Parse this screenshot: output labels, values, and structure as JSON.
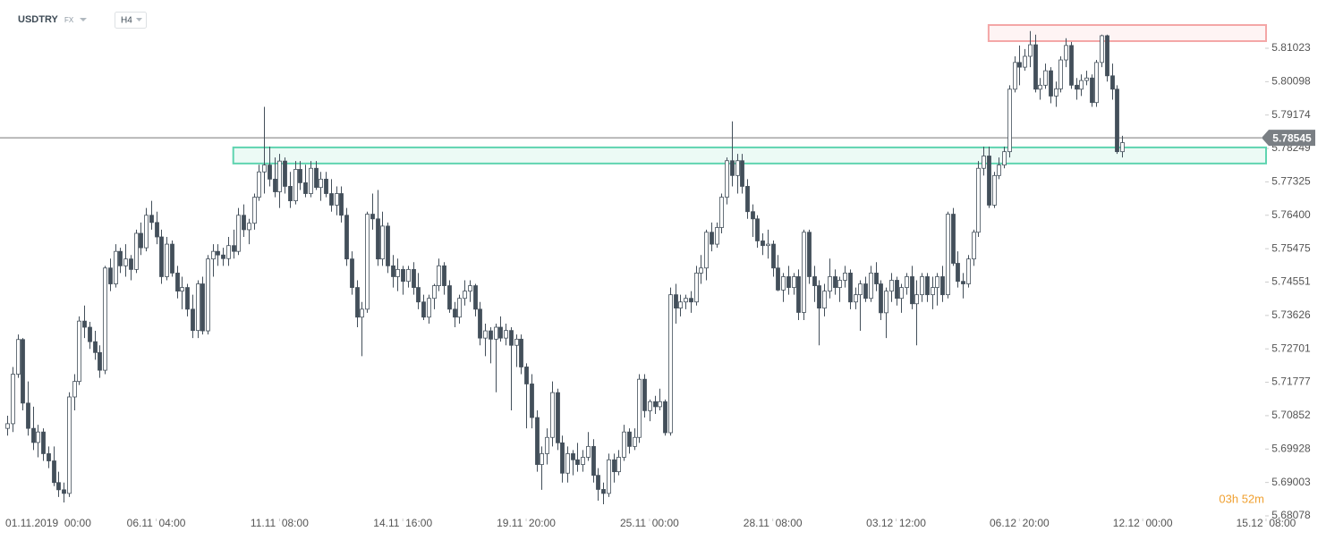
{
  "header": {
    "symbol": "USDTRY",
    "market": "FX",
    "interval": "H4"
  },
  "chart_data": {
    "type": "candlestick",
    "up_color": "#ffffff",
    "down_color": "#434f5a",
    "edge_color": "#434f5a",
    "ylim": [
      5.68004,
      5.82359
    ],
    "yticks": [
      5.68078,
      5.69003,
      5.69928,
      5.70852,
      5.71777,
      5.72701,
      5.73626,
      5.74551,
      5.75475,
      {
        "value": 5.764,
        "label": "5.76400"
      },
      5.77325,
      5.78249,
      5.79174,
      5.80098,
      5.81023
    ],
    "xlim": [
      -1.4,
      245
    ],
    "xticks": [
      {
        "value": 8,
        "label": "01.11.2019  00:00"
      },
      {
        "value": 29,
        "label": "06.11  04:00"
      },
      {
        "value": 53,
        "label": "11.11  08:00"
      },
      {
        "value": 77,
        "label": "14.11  16:00"
      },
      {
        "value": 101,
        "label": "19.11  20:00"
      },
      {
        "value": 125,
        "label": "25.11  00:00"
      },
      {
        "value": 149,
        "label": "28.11  08:00"
      },
      {
        "value": 173,
        "label": "03.12  12:00"
      },
      {
        "value": 197,
        "label": "06.12  20:00"
      },
      {
        "value": 221,
        "label": "12.12  00:00"
      },
      {
        "value": 245,
        "label": "15.12  08:00"
      }
    ],
    "last_price": 5.78545,
    "zones": [
      {
        "start": 44,
        "low": 5.77833,
        "high": 5.78278,
        "color": "#5fd4b0"
      },
      {
        "start": 191,
        "low": 5.81221,
        "high": 5.81666,
        "color": "#f4a6a6"
      }
    ],
    "timer": "03h 52m",
    "ohlc": [
      [
        5.705,
        5.7085,
        5.703,
        5.7063
      ],
      [
        5.7063,
        5.722,
        5.704,
        5.72
      ],
      [
        5.72,
        5.731,
        5.719,
        5.7296
      ],
      [
        5.7296,
        5.73,
        5.71,
        5.712
      ],
      [
        5.712,
        5.718,
        5.703,
        5.705
      ],
      [
        5.705,
        5.711,
        5.699,
        5.7011
      ],
      [
        5.7011,
        5.706,
        5.697,
        5.704
      ],
      [
        5.704,
        5.705,
        5.696,
        5.698
      ],
      [
        5.698,
        5.7,
        5.694,
        5.696
      ],
      [
        5.696,
        5.7,
        5.689,
        5.69
      ],
      [
        5.69,
        5.693,
        5.686,
        5.688
      ],
      [
        5.688,
        5.69,
        5.6845,
        5.687
      ],
      [
        5.687,
        5.715,
        5.686,
        5.7137
      ],
      [
        5.7137,
        5.72,
        5.71,
        5.718
      ],
      [
        5.718,
        5.736,
        5.717,
        5.7347
      ],
      [
        5.7347,
        5.739,
        5.73,
        5.733
      ],
      [
        5.733,
        5.7345,
        5.727,
        5.729
      ],
      [
        5.729,
        5.732,
        5.724,
        5.726
      ],
      [
        5.726,
        5.728,
        5.719,
        5.7211
      ],
      [
        5.7211,
        5.75,
        5.72,
        5.7494
      ],
      [
        5.7494,
        5.752,
        5.743,
        5.745
      ],
      [
        5.745,
        5.756,
        5.744,
        5.754
      ],
      [
        5.754,
        5.755,
        5.748,
        5.75
      ],
      [
        5.75,
        5.756,
        5.747,
        5.7519
      ],
      [
        5.7519,
        5.753,
        5.746,
        5.749
      ],
      [
        5.749,
        5.76,
        5.748,
        5.759
      ],
      [
        5.759,
        5.762,
        5.753,
        5.755
      ],
      [
        5.755,
        5.766,
        5.754,
        5.764
      ],
      [
        5.764,
        5.768,
        5.76,
        5.762
      ],
      [
        5.762,
        5.765,
        5.756,
        5.758
      ],
      [
        5.758,
        5.76,
        5.745,
        5.747
      ],
      [
        5.747,
        5.758,
        5.746,
        5.756
      ],
      [
        5.756,
        5.757,
        5.747,
        5.748
      ],
      [
        5.748,
        5.75,
        5.741,
        5.743
      ],
      [
        5.743,
        5.747,
        5.738,
        5.744
      ],
      [
        5.744,
        5.745,
        5.736,
        5.738
      ],
      [
        5.738,
        5.742,
        5.73,
        5.7321
      ],
      [
        5.7321,
        5.746,
        5.73,
        5.745
      ],
      [
        5.745,
        5.747,
        5.731,
        5.732
      ],
      [
        5.732,
        5.753,
        5.731,
        5.7519
      ],
      [
        5.7519,
        5.756,
        5.747,
        5.754
      ],
      [
        5.754,
        5.756,
        5.75,
        5.753
      ],
      [
        5.753,
        5.755,
        5.75,
        5.752
      ],
      [
        5.752,
        5.758,
        5.75,
        5.7556
      ],
      [
        5.7556,
        5.76,
        5.752,
        5.754
      ],
      [
        5.754,
        5.766,
        5.753,
        5.764
      ],
      [
        5.764,
        5.767,
        5.758,
        5.76
      ],
      [
        5.76,
        5.763,
        5.756,
        5.7618
      ],
      [
        5.7618,
        5.77,
        5.76,
        5.769
      ],
      [
        5.769,
        5.778,
        5.768,
        5.776
      ],
      [
        5.776,
        5.794,
        5.77,
        5.7779
      ],
      [
        5.7779,
        5.783,
        5.772,
        5.774
      ],
      [
        5.774,
        5.78,
        5.769,
        5.7705
      ],
      [
        5.7705,
        5.781,
        5.766,
        5.779
      ],
      [
        5.779,
        5.78,
        5.77,
        5.772
      ],
      [
        5.772,
        5.776,
        5.766,
        5.768
      ],
      [
        5.768,
        5.779,
        5.767,
        5.7767
      ],
      [
        5.7767,
        5.779,
        5.771,
        5.773
      ],
      [
        5.773,
        5.778,
        5.769,
        5.77
      ],
      [
        5.77,
        5.779,
        5.769,
        5.777
      ],
      [
        5.777,
        5.779,
        5.771,
        5.7717
      ],
      [
        5.7717,
        5.776,
        5.768,
        5.774
      ],
      [
        5.774,
        5.776,
        5.769,
        5.77
      ],
      [
        5.77,
        5.774,
        5.765,
        5.7668
      ],
      [
        5.7668,
        5.772,
        5.764,
        5.77
      ],
      [
        5.77,
        5.772,
        5.762,
        5.764
      ],
      [
        5.764,
        5.766,
        5.75,
        5.7519
      ],
      [
        5.7519,
        5.754,
        5.742,
        5.744
      ],
      [
        5.744,
        5.746,
        5.733,
        5.7358
      ],
      [
        5.7358,
        5.74,
        5.725,
        5.738
      ],
      [
        5.738,
        5.765,
        5.737,
        5.7643
      ],
      [
        5.7643,
        5.77,
        5.76,
        5.763
      ],
      [
        5.763,
        5.771,
        5.75,
        5.7519
      ],
      [
        5.7519,
        5.765,
        5.75,
        5.761
      ],
      [
        5.761,
        5.762,
        5.748,
        5.75
      ],
      [
        5.75,
        5.753,
        5.744,
        5.747
      ],
      [
        5.747,
        5.752,
        5.743,
        5.749
      ],
      [
        5.749,
        5.75,
        5.742,
        5.7457
      ],
      [
        5.7457,
        5.75,
        5.744,
        5.749
      ],
      [
        5.749,
        5.751,
        5.742,
        5.744
      ],
      [
        5.744,
        5.748,
        5.738,
        5.74
      ],
      [
        5.74,
        5.742,
        5.735,
        5.7358
      ],
      [
        5.7358,
        5.742,
        5.734,
        5.741
      ],
      [
        5.741,
        5.745,
        5.738,
        5.7445
      ],
      [
        5.7445,
        5.752,
        5.743,
        5.75
      ],
      [
        5.75,
        5.751,
        5.742,
        5.7445
      ],
      [
        5.7445,
        5.746,
        5.737,
        5.738
      ],
      [
        5.738,
        5.74,
        5.733,
        5.7358
      ],
      [
        5.7358,
        5.742,
        5.734,
        5.741
      ],
      [
        5.741,
        5.746,
        5.739,
        5.743
      ],
      [
        5.743,
        5.746,
        5.74,
        5.7445
      ],
      [
        5.7445,
        5.745,
        5.736,
        5.738
      ],
      [
        5.738,
        5.74,
        5.728,
        5.73
      ],
      [
        5.73,
        5.734,
        5.725,
        5.732
      ],
      [
        5.732,
        5.733,
        5.723,
        5.7297
      ],
      [
        5.7297,
        5.734,
        5.715,
        5.733
      ],
      [
        5.733,
        5.736,
        5.729,
        5.73
      ],
      [
        5.73,
        5.734,
        5.728,
        5.7321
      ],
      [
        5.7321,
        5.733,
        5.71,
        5.728
      ],
      [
        5.728,
        5.731,
        5.722,
        5.7297
      ],
      [
        5.7297,
        5.731,
        5.72,
        5.722
      ],
      [
        5.722,
        5.723,
        5.705,
        5.7173
      ],
      [
        5.7173,
        5.72,
        5.705,
        5.708
      ],
      [
        5.708,
        5.71,
        5.693,
        5.695
      ],
      [
        5.695,
        5.7,
        5.688,
        5.698
      ],
      [
        5.698,
        5.705,
        5.695,
        5.7025
      ],
      [
        5.7025,
        5.718,
        5.7,
        5.7149
      ],
      [
        5.7149,
        5.716,
        5.699,
        5.701
      ],
      [
        5.701,
        5.703,
        5.69,
        5.6926
      ],
      [
        5.6926,
        5.7,
        5.69,
        5.698
      ],
      [
        5.698,
        5.699,
        5.692,
        5.6963
      ],
      [
        5.6963,
        5.701,
        5.693,
        5.695
      ],
      [
        5.695,
        5.699,
        5.693,
        5.697
      ],
      [
        5.697,
        5.704,
        5.696,
        5.7
      ],
      [
        5.7,
        5.702,
        5.69,
        5.692
      ],
      [
        5.692,
        5.694,
        5.685,
        5.6881
      ],
      [
        5.6881,
        5.69,
        5.684,
        5.687
      ],
      [
        5.687,
        5.698,
        5.686,
        5.6963
      ],
      [
        5.6963,
        5.698,
        5.69,
        5.693
      ],
      [
        5.693,
        5.699,
        5.692,
        5.697
      ],
      [
        5.697,
        5.706,
        5.696,
        5.704
      ],
      [
        5.704,
        5.705,
        5.698,
        5.7
      ],
      [
        5.7,
        5.705,
        5.699,
        5.7025
      ],
      [
        5.7025,
        5.72,
        5.701,
        5.7186
      ],
      [
        5.7186,
        5.72,
        5.708,
        5.7099
      ],
      [
        5.7099,
        5.713,
        5.707,
        5.7124
      ],
      [
        5.7124,
        5.714,
        5.709,
        5.711
      ],
      [
        5.711,
        5.716,
        5.71,
        5.7124
      ],
      [
        5.7124,
        5.713,
        5.703,
        5.7038
      ],
      [
        5.7038,
        5.744,
        5.703,
        5.742
      ],
      [
        5.742,
        5.745,
        5.734,
        5.7383
      ],
      [
        5.7383,
        5.742,
        5.736,
        5.74
      ],
      [
        5.74,
        5.742,
        5.738,
        5.741
      ],
      [
        5.741,
        5.743,
        5.737,
        5.74
      ],
      [
        5.74,
        5.75,
        5.739,
        5.748
      ],
      [
        5.748,
        5.753,
        5.745,
        5.7494
      ],
      [
        5.7494,
        5.76,
        5.746,
        5.7593
      ],
      [
        5.7593,
        5.762,
        5.754,
        5.756
      ],
      [
        5.756,
        5.762,
        5.755,
        5.7606
      ],
      [
        5.7606,
        5.77,
        5.759,
        5.769
      ],
      [
        5.769,
        5.78,
        5.767,
        5.7791
      ],
      [
        5.7791,
        5.79,
        5.772,
        5.775
      ],
      [
        5.775,
        5.781,
        5.77,
        5.7791
      ],
      [
        5.7791,
        5.781,
        5.77,
        5.772
      ],
      [
        5.772,
        5.774,
        5.763,
        5.765
      ],
      [
        5.765,
        5.767,
        5.758,
        5.763
      ],
      [
        5.763,
        5.764,
        5.755,
        5.7569
      ],
      [
        5.7569,
        5.759,
        5.753,
        5.7556
      ],
      [
        5.7556,
        5.76,
        5.752,
        5.756
      ],
      [
        5.756,
        5.757,
        5.747,
        5.7494
      ],
      [
        5.7494,
        5.753,
        5.743,
        5.7433
      ],
      [
        5.7433,
        5.748,
        5.74,
        5.747
      ],
      [
        5.747,
        5.75,
        5.742,
        5.744
      ],
      [
        5.744,
        5.748,
        5.742,
        5.747
      ],
      [
        5.747,
        5.749,
        5.735,
        5.7371
      ],
      [
        5.7371,
        5.76,
        5.735,
        5.7593
      ],
      [
        5.7593,
        5.76,
        5.745,
        5.747
      ],
      [
        5.747,
        5.75,
        5.74,
        5.7445
      ],
      [
        5.7445,
        5.746,
        5.728,
        5.7383
      ],
      [
        5.7383,
        5.745,
        5.736,
        5.743
      ],
      [
        5.743,
        5.752,
        5.741,
        5.747
      ],
      [
        5.747,
        5.749,
        5.742,
        5.744
      ],
      [
        5.744,
        5.747,
        5.74,
        5.746
      ],
      [
        5.746,
        5.75,
        5.744,
        5.748
      ],
      [
        5.748,
        5.749,
        5.738,
        5.74
      ],
      [
        5.74,
        5.744,
        5.738,
        5.742
      ],
      [
        5.742,
        5.746,
        5.732,
        5.745
      ],
      [
        5.745,
        5.747,
        5.74,
        5.741
      ],
      [
        5.741,
        5.75,
        5.74,
        5.748
      ],
      [
        5.748,
        5.751,
        5.743,
        5.745
      ],
      [
        5.745,
        5.746,
        5.735,
        5.737
      ],
      [
        5.737,
        5.744,
        5.73,
        5.743
      ],
      [
        5.743,
        5.748,
        5.74,
        5.746
      ],
      [
        5.746,
        5.747,
        5.739,
        5.741
      ],
      [
        5.741,
        5.745,
        5.737,
        5.744
      ],
      [
        5.744,
        5.748,
        5.742,
        5.747
      ],
      [
        5.747,
        5.75,
        5.738,
        5.7395
      ],
      [
        5.7395,
        5.746,
        5.728,
        5.742
      ],
      [
        5.742,
        5.748,
        5.74,
        5.747
      ],
      [
        5.747,
        5.748,
        5.74,
        5.742
      ],
      [
        5.742,
        5.747,
        5.738,
        5.744
      ],
      [
        5.744,
        5.748,
        5.739,
        5.747
      ],
      [
        5.747,
        5.75,
        5.74,
        5.742
      ],
      [
        5.742,
        5.765,
        5.741,
        5.7643
      ],
      [
        5.7643,
        5.766,
        5.75,
        5.7507
      ],
      [
        5.7507,
        5.754,
        5.744,
        5.7457
      ],
      [
        5.7457,
        5.748,
        5.741,
        5.745
      ],
      [
        5.745,
        5.753,
        5.744,
        5.7519
      ],
      [
        5.7519,
        5.76,
        5.75,
        5.7593
      ],
      [
        5.7593,
        5.779,
        5.758,
        5.777
      ],
      [
        5.777,
        5.783,
        5.775,
        5.7804
      ],
      [
        5.7804,
        5.783,
        5.766,
        5.7668
      ],
      [
        5.7668,
        5.776,
        5.766,
        5.775
      ],
      [
        5.775,
        5.78,
        5.774,
        5.7779
      ],
      [
        5.7779,
        5.783,
        5.777,
        5.7816
      ],
      [
        5.7816,
        5.8,
        5.78,
        5.7989
      ],
      [
        5.7989,
        5.808,
        5.798,
        5.8063
      ],
      [
        5.8063,
        5.811,
        5.8,
        5.805
      ],
      [
        5.805,
        5.81,
        5.804,
        5.808
      ],
      [
        5.808,
        5.815,
        5.805,
        5.8112
      ],
      [
        5.8112,
        5.814,
        5.798,
        5.7989
      ],
      [
        5.7989,
        5.802,
        5.796,
        5.8
      ],
      [
        5.8,
        5.806,
        5.799,
        5.804
      ],
      [
        5.804,
        5.805,
        5.795,
        5.797
      ],
      [
        5.797,
        5.801,
        5.794,
        5.799
      ],
      [
        5.799,
        5.808,
        5.798,
        5.807
      ],
      [
        5.807,
        5.813,
        5.805,
        5.811
      ],
      [
        5.811,
        5.812,
        5.799,
        5.8
      ],
      [
        5.8,
        5.802,
        5.796,
        5.7989
      ],
      [
        5.7989,
        5.803,
        5.797,
        5.8013
      ],
      [
        5.8013,
        5.804,
        5.8,
        5.802
      ],
      [
        5.802,
        5.803,
        5.794,
        5.7952
      ],
      [
        5.7952,
        5.807,
        5.794,
        5.8063
      ],
      [
        5.8063,
        5.814,
        5.805,
        5.8137
      ],
      [
        5.8137,
        5.814,
        5.801,
        5.8026
      ],
      [
        5.8026,
        5.806,
        5.796,
        5.7989
      ],
      [
        5.7989,
        5.8,
        5.781,
        5.7816
      ],
      [
        5.7816,
        5.786,
        5.78,
        5.7841
      ]
    ]
  }
}
